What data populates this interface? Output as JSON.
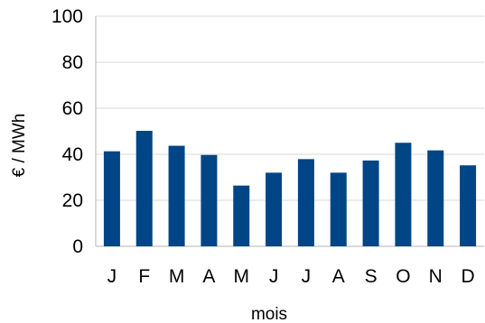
{
  "chart_data": {
    "type": "bar",
    "categories": [
      "J",
      "F",
      "M",
      "A",
      "M",
      "J",
      "J",
      "A",
      "S",
      "O",
      "N",
      "D"
    ],
    "values": [
      41.3,
      50.2,
      43.7,
      39.7,
      26.4,
      32.0,
      37.9,
      32.0,
      37.3,
      45.0,
      41.7,
      35.2
    ],
    "xlabel": "mois",
    "ylabel": "€ / MWh",
    "ylim": [
      0,
      100
    ],
    "yticks": [
      "0",
      "20",
      "40",
      "60",
      "80",
      "100"
    ],
    "grid": true,
    "bar_color": "#004586"
  }
}
